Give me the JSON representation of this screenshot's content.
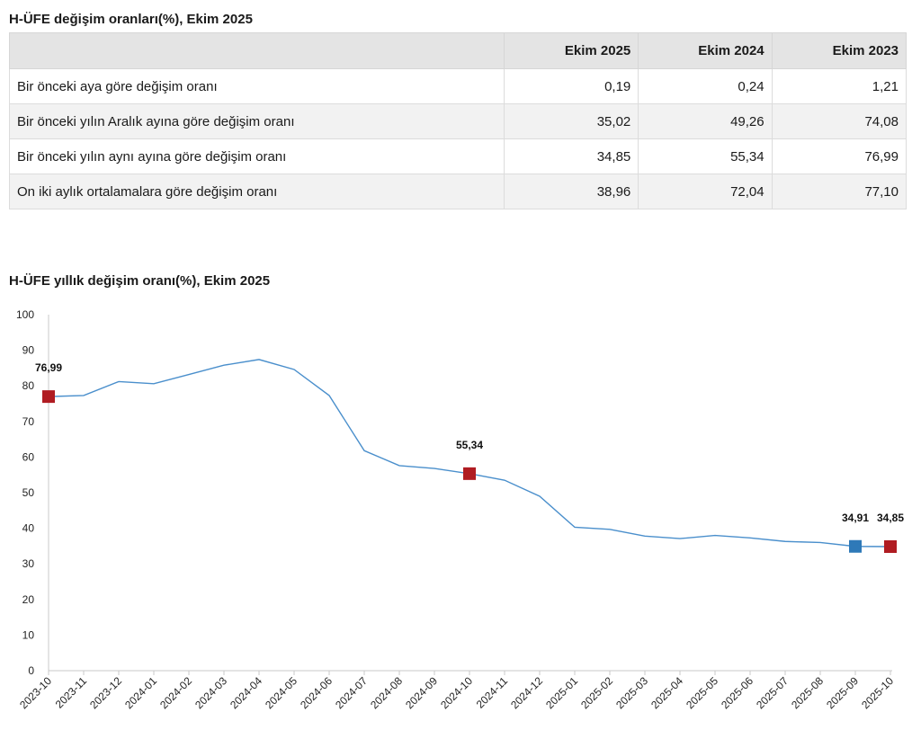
{
  "table": {
    "title": "H-ÜFE değişim oranları(%), Ekim 2025",
    "headers": [
      "",
      "Ekim 2025",
      "Ekim 2024",
      "Ekim 2023"
    ],
    "rows": [
      [
        "Bir önceki aya göre değişim oranı",
        "0,19",
        "0,24",
        "1,21"
      ],
      [
        "Bir önceki yılın Aralık ayına göre değişim oranı",
        "35,02",
        "49,26",
        "74,08"
      ],
      [
        "Bir önceki yılın aynı ayına göre değişim oranı",
        "34,85",
        "55,34",
        "76,99"
      ],
      [
        "On iki aylık ortalamalara göre değişim oranı",
        "38,96",
        "72,04",
        "77,10"
      ]
    ]
  },
  "chart_title": "H-ÜFE yıllık değişim oranı(%), Ekim 2025",
  "chart_data": {
    "type": "line",
    "title": "H-ÜFE yıllık değişim oranı(%), Ekim 2025",
    "xlabel": "",
    "ylabel": "",
    "ylim": [
      0,
      100
    ],
    "yticks": [
      0,
      10,
      20,
      30,
      40,
      50,
      60,
      70,
      80,
      90,
      100
    ],
    "categories": [
      "2023-10",
      "2023-11",
      "2023-12",
      "2024-01",
      "2024-02",
      "2024-03",
      "2024-04",
      "2024-05",
      "2024-06",
      "2024-07",
      "2024-08",
      "2024-09",
      "2024-10",
      "2024-11",
      "2024-12",
      "2025-01",
      "2025-02",
      "2025-03",
      "2025-04",
      "2025-05",
      "2025-06",
      "2025-07",
      "2025-08",
      "2025-09",
      "2025-10"
    ],
    "series": [
      {
        "values": [
          76.99,
          77.3,
          81.2,
          80.6,
          83.2,
          85.8,
          87.4,
          84.6,
          77.3,
          61.8,
          57.6,
          56.8,
          55.34,
          53.5,
          49.0,
          40.3,
          39.7,
          37.8,
          37.1,
          38.0,
          37.3,
          36.3,
          36.0,
          34.91,
          34.85
        ],
        "color": "#4a8fcc"
      }
    ],
    "markers": [
      {
        "index": 0,
        "label": "76,99",
        "color": "#b01c22"
      },
      {
        "index": 12,
        "label": "55,34",
        "color": "#b01c22"
      },
      {
        "index": 23,
        "label": "34,91",
        "color": "#2e79b8"
      },
      {
        "index": 24,
        "label": "34,85",
        "color": "#b01c22"
      }
    ],
    "grid": false
  }
}
